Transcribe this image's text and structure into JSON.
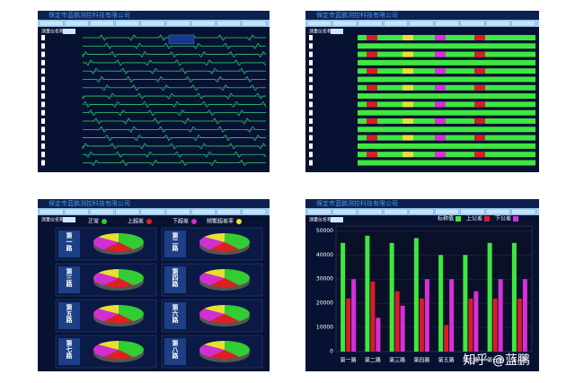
{
  "company": "保定市蓝鹏测控科技有限公司",
  "device_label": "测量仪名称",
  "pie_panel": {
    "legend": [
      {
        "name": "正常",
        "color": "#33cc33"
      },
      {
        "name": "上超差",
        "color": "#e02020"
      },
      {
        "name": "下超差",
        "color": "#d22fd2"
      },
      {
        "name": "频繁超差率",
        "color": "#e8e030"
      }
    ],
    "roads": [
      {
        "label": "第一路",
        "values": [
          40,
          20,
          25,
          15
        ]
      },
      {
        "label": "第二路",
        "values": [
          40,
          20,
          25,
          15
        ]
      },
      {
        "label": "第三路",
        "values": [
          40,
          20,
          25,
          15
        ]
      },
      {
        "label": "第四路",
        "values": [
          40,
          20,
          25,
          15
        ]
      },
      {
        "label": "第五路",
        "values": [
          40,
          20,
          25,
          15
        ]
      },
      {
        "label": "第六路",
        "values": [
          40,
          20,
          25,
          15
        ]
      },
      {
        "label": "第七路",
        "values": [
          40,
          20,
          25,
          15
        ]
      },
      {
        "label": "第八路",
        "values": [
          40,
          20,
          25,
          15
        ]
      }
    ]
  },
  "chart_data": {
    "type": "bar",
    "categories": [
      "第一路",
      "第二路",
      "第三路",
      "第四路",
      "第五路",
      "第六路",
      "第七路",
      "第八路"
    ],
    "series": [
      {
        "name": "标称值",
        "color": "#3ee83e",
        "values": [
          45000,
          48000,
          45000,
          47000,
          40000,
          40000,
          45000,
          45000
        ]
      },
      {
        "name": "上公差",
        "color": "#d81c2c",
        "values": [
          22000,
          29000,
          25000,
          22000,
          11000,
          22000,
          22000,
          22000
        ]
      },
      {
        "name": "下公差",
        "color": "#d630d6",
        "values": [
          30000,
          14000,
          19000,
          30000,
          30000,
          25000,
          30000,
          30000
        ]
      }
    ],
    "ylim": [
      0,
      52000
    ],
    "yticks": [
      0,
      10000,
      20000,
      30000,
      40000,
      50000
    ],
    "grid": true
  },
  "watermark": "知乎 @蓝鹏"
}
